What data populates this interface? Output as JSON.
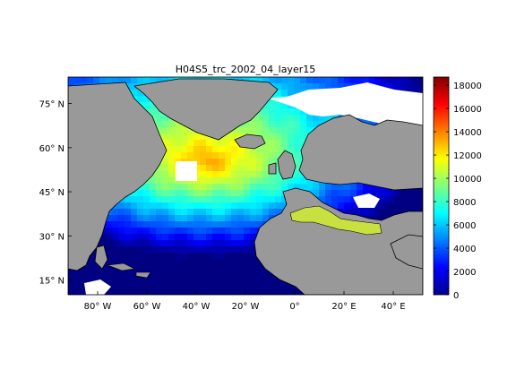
{
  "title": "H04S5_trc_2002_04_layer15",
  "map": {
    "lon_range": [
      -92,
      52
    ],
    "lat_range": [
      10,
      84
    ],
    "x_ticks": [
      {
        "lon": -80,
        "label": "80° W"
      },
      {
        "lon": -60,
        "label": "60° W"
      },
      {
        "lon": -40,
        "label": "40° W"
      },
      {
        "lon": -20,
        "label": "20° W"
      },
      {
        "lon": 0,
        "label": "0°"
      },
      {
        "lon": 20,
        "label": "20° E"
      },
      {
        "lon": 40,
        "label": "40° E"
      }
    ],
    "y_ticks": [
      {
        "lat": 15,
        "label": "15° N"
      },
      {
        "lat": 30,
        "label": "30° N"
      },
      {
        "lat": 45,
        "label": "45° N"
      },
      {
        "lat": 60,
        "label": "60° N"
      },
      {
        "lat": 75,
        "label": "75° N"
      }
    ],
    "land_color": "#999999",
    "nodata_color": "#ffffff"
  },
  "colorbar": {
    "colormap": "jet",
    "range": [
      0,
      18700
    ],
    "ticks": [
      0,
      2000,
      4000,
      6000,
      8000,
      10000,
      12000,
      14000,
      16000,
      18000
    ]
  }
}
